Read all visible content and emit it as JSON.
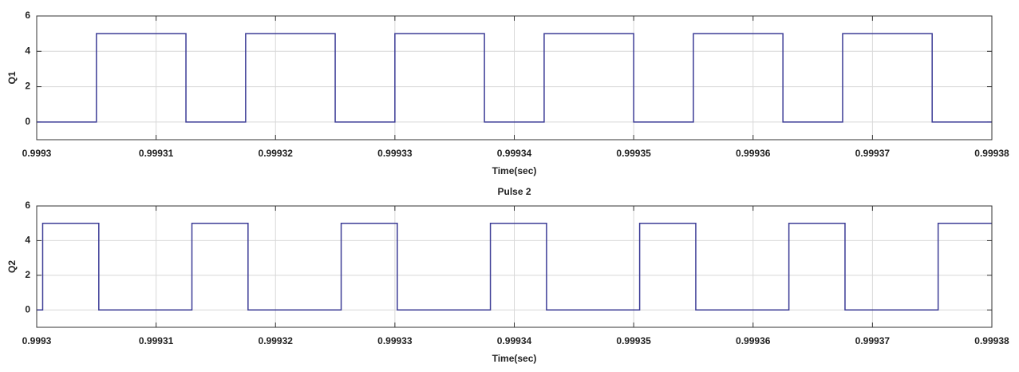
{
  "chart_data": [
    {
      "type": "line",
      "ylabel": "Q1",
      "xlabel": "Time(sec)",
      "xlim": [
        0.9993,
        0.99938
      ],
      "xticks": [
        0.9993,
        0.99931,
        0.99932,
        0.99933,
        0.99934,
        0.99935,
        0.99936,
        0.99937,
        0.99938
      ],
      "ylim": [
        -1,
        6
      ],
      "yticks": [
        0,
        2,
        4,
        6
      ],
      "grid": true,
      "series": [
        {
          "color": "#3c3c96",
          "x": [
            0.9993,
            0.999305,
            0.999305,
            0.9993125,
            0.9993125,
            0.9993175,
            0.9993175,
            0.999325,
            0.999325,
            0.99933,
            0.99933,
            0.9993375,
            0.9993375,
            0.9993425,
            0.9993425,
            0.99935,
            0.99935,
            0.999355,
            0.999355,
            0.9993625,
            0.9993625,
            0.9993675,
            0.9993675,
            0.999375,
            0.999375,
            0.99938
          ],
          "values": [
            0,
            0,
            5,
            5,
            0,
            0,
            5,
            5,
            0,
            0,
            5,
            5,
            0,
            0,
            5,
            5,
            0,
            0,
            5,
            5,
            0,
            0,
            5,
            5,
            0,
            0
          ]
        }
      ]
    },
    {
      "type": "line",
      "title": "Pulse 2",
      "ylabel": "Q2",
      "xlabel": "Time(sec)",
      "xlim": [
        0.9993,
        0.99938
      ],
      "xticks": [
        0.9993,
        0.99931,
        0.99932,
        0.99933,
        0.99934,
        0.99935,
        0.99936,
        0.99937,
        0.99938
      ],
      "ylim": [
        -1,
        6
      ],
      "yticks": [
        0,
        2,
        4,
        6
      ],
      "grid": true,
      "series": [
        {
          "color": "#3c3c96",
          "x": [
            0.9993,
            0.9993005,
            0.9993005,
            0.9993052,
            0.9993052,
            0.999313,
            0.999313,
            0.9993177,
            0.9993177,
            0.9993255,
            0.9993255,
            0.9993302,
            0.9993302,
            0.999338,
            0.999338,
            0.9993427,
            0.9993427,
            0.9993505,
            0.9993505,
            0.9993552,
            0.9993552,
            0.999363,
            0.999363,
            0.9993677,
            0.9993677,
            0.9993755,
            0.9993755,
            0.99938
          ],
          "values": [
            0,
            0,
            5,
            5,
            0,
            0,
            5,
            5,
            0,
            0,
            5,
            5,
            0,
            0,
            5,
            5,
            0,
            0,
            5,
            5,
            0,
            0,
            5,
            5,
            0,
            0,
            5,
            5
          ]
        }
      ]
    }
  ]
}
